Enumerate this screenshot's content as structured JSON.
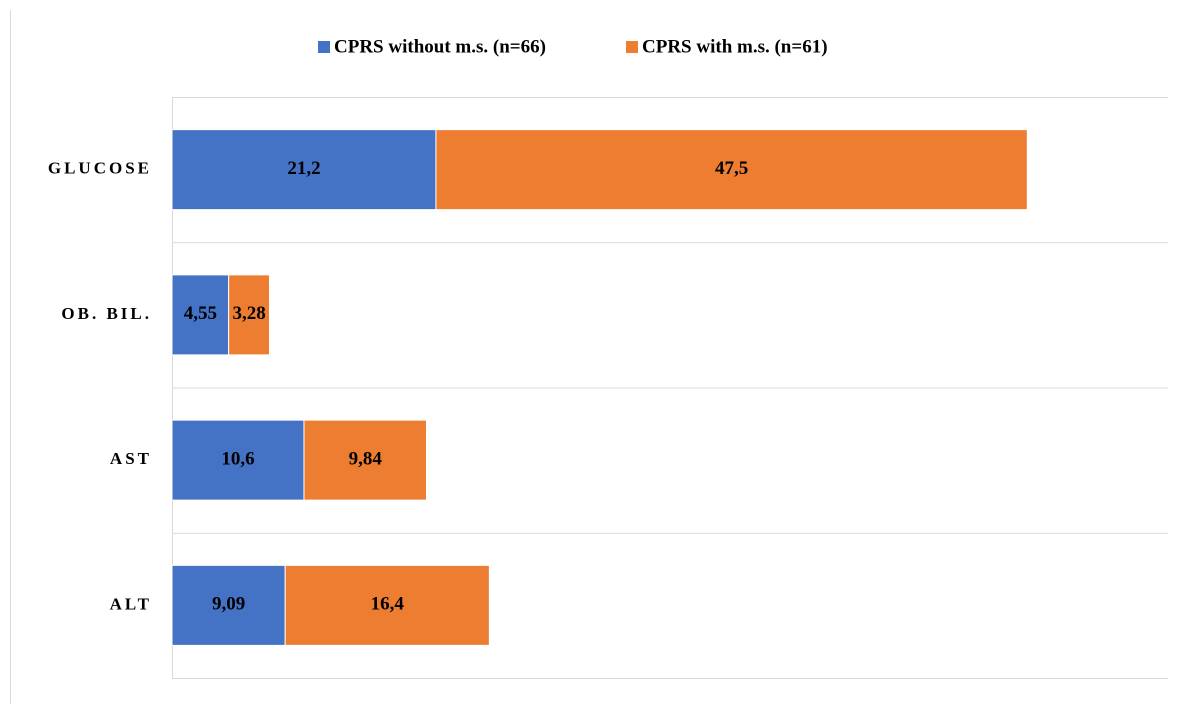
{
  "chart_data": {
    "type": "stacked_bar_horizontal",
    "categories": [
      "GLUCOSE",
      "OB. BIL.",
      "AST",
      "ALT"
    ],
    "series": [
      {
        "name": "CPRS without m.s. (n=66)",
        "color": "#4472c4",
        "values": [
          21.2,
          4.55,
          10.6,
          9.09
        ],
        "value_labels": [
          "21,2",
          "4,55",
          "10,6",
          "9,09"
        ]
      },
      {
        "name": "CPRS with m.s. (n=61)",
        "color": "#ed7d31",
        "values": [
          47.5,
          3.28,
          9.84,
          16.4
        ],
        "value_labels": [
          "47,5",
          "3,28",
          "9,84",
          "16,4"
        ]
      }
    ],
    "xlim": [
      0,
      80
    ],
    "legend": "top"
  }
}
